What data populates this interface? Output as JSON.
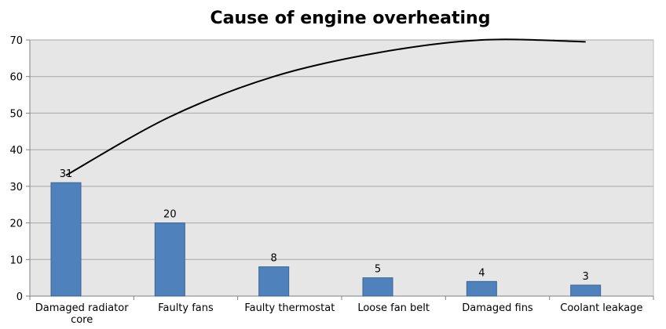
{
  "chart_data": {
    "type": "bar",
    "title": "Cause of engine overheating",
    "categories": [
      "Damaged radiator core",
      "Faulty fans",
      "Faulty thermostat",
      "Loose fan belt",
      "Damaged fins",
      "Coolant leakage"
    ],
    "series": [
      {
        "values": [
          31,
          20,
          8,
          5,
          4,
          3
        ],
        "color": "#4f81bd"
      }
    ],
    "trendline": {
      "type": "polynomial",
      "values": [
        33,
        49,
        60,
        66.5,
        70,
        69.5
      ],
      "color": "#000000"
    },
    "yticks": [
      0,
      10,
      20,
      30,
      40,
      50,
      60,
      70
    ],
    "ylim": [
      0,
      70
    ],
    "grid": true,
    "legend": "none",
    "plot_background": "#e6e6e6"
  }
}
